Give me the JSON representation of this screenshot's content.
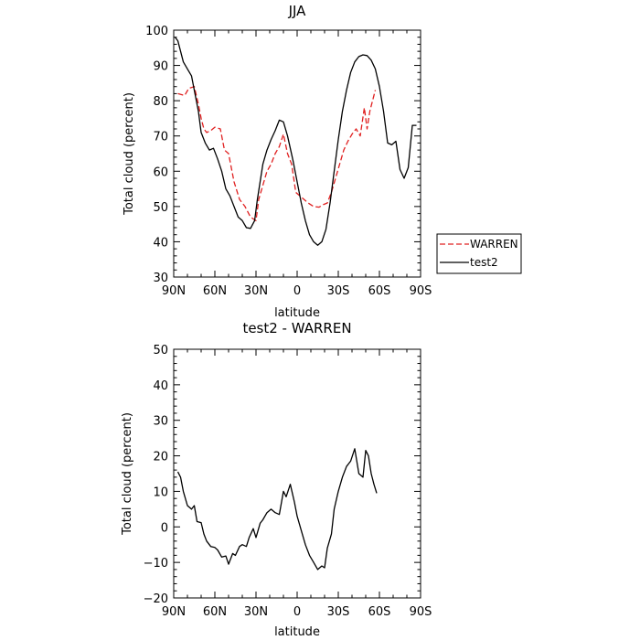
{
  "chart_data": [
    {
      "type": "line",
      "title": "JJA",
      "xlabel": "latitude",
      "ylabel": "Total cloud (percent)",
      "xlim": [
        90,
        -90
      ],
      "ylim": [
        30,
        100
      ],
      "x_ticks": [
        90,
        60,
        30,
        0,
        -30,
        -60,
        -90
      ],
      "x_tick_labels": [
        "90N",
        "60N",
        "30N",
        "0",
        "30S",
        "60S",
        "90S"
      ],
      "y_ticks": [
        30,
        40,
        50,
        60,
        70,
        80,
        90,
        100
      ],
      "y_tick_labels": [
        "30",
        "40",
        "50",
        "60",
        "70",
        "80",
        "90",
        "100"
      ],
      "grid": false,
      "legend": {
        "placement": "right"
      },
      "series": [
        {
          "name": "WARREN",
          "color": "#e02020",
          "dash": "dashed",
          "x": [
            87,
            82,
            79,
            75,
            72,
            70,
            68,
            66,
            63,
            60,
            56,
            53,
            50,
            46,
            42,
            38,
            34,
            30,
            28,
            25,
            22,
            19,
            16,
            13,
            10,
            7,
            4,
            1,
            -2,
            -5,
            -8,
            -12,
            -16,
            -19,
            -22,
            -25,
            -28,
            -31,
            -34,
            -37,
            -40,
            -43,
            -46,
            -49,
            -51,
            -53,
            -55,
            -57
          ],
          "y": [
            82,
            81.5,
            83.5,
            84,
            79,
            75,
            72,
            71,
            71.5,
            72.5,
            72,
            66,
            65,
            57,
            52,
            50,
            47,
            46,
            52,
            56,
            60,
            62,
            65,
            67,
            70.5,
            65,
            62,
            54,
            53,
            52,
            51,
            50,
            49.8,
            50.5,
            51,
            54,
            58,
            62,
            66,
            68.5,
            70.5,
            72,
            70,
            78,
            72,
            77,
            80,
            83
          ]
        },
        {
          "name": "test2",
          "color": "#000000",
          "dash": "solid",
          "x": [
            89,
            87,
            85,
            83,
            80,
            77,
            75,
            72,
            70,
            67,
            64,
            61,
            58,
            55,
            52,
            49,
            46,
            43,
            40,
            37,
            34,
            31,
            29,
            27,
            25,
            22,
            19,
            16,
            13,
            10,
            7,
            5,
            3,
            0,
            -3,
            -6,
            -9,
            -12,
            -15,
            -18,
            -21,
            -24,
            -27,
            -30,
            -33,
            -36,
            -39,
            -42,
            -45,
            -48,
            -51,
            -54,
            -57,
            -60,
            -63,
            -66,
            -69,
            -72,
            -75,
            -78,
            -81,
            -84,
            -87
          ],
          "y": [
            98,
            97,
            94,
            91,
            89,
            87,
            83,
            77,
            71,
            68,
            66,
            66.5,
            63.5,
            60,
            55,
            53,
            50,
            47,
            46,
            44,
            43.8,
            46,
            52,
            57,
            62,
            66,
            69,
            71.5,
            74.5,
            74,
            70,
            66.5,
            63,
            57,
            51,
            46,
            42,
            40,
            39,
            40,
            43.5,
            51,
            60,
            69,
            77,
            83,
            88,
            91,
            92.5,
            93,
            92.8,
            91.5,
            89,
            84,
            77,
            68,
            67.5,
            68.5,
            60.5,
            58,
            61,
            73,
            73
          ]
        }
      ]
    },
    {
      "type": "line",
      "title": "test2 - WARREN",
      "xlabel": "latitude",
      "ylabel": "Total cloud (percent)",
      "xlim": [
        90,
        -90
      ],
      "ylim": [
        -20,
        50
      ],
      "x_ticks": [
        90,
        60,
        30,
        0,
        -30,
        -60,
        -90
      ],
      "x_tick_labels": [
        "90N",
        "60N",
        "30N",
        "0",
        "30S",
        "60S",
        "90S"
      ],
      "y_ticks": [
        -20,
        -10,
        0,
        10,
        20,
        30,
        40,
        50
      ],
      "y_tick_labels": [
        "−20",
        "−10",
        "0",
        "10",
        "20",
        "30",
        "40",
        "50"
      ],
      "grid": false,
      "series": [
        {
          "color": "#000000",
          "dash": "solid",
          "x": [
            87,
            85,
            83,
            80,
            77,
            75,
            73,
            70,
            68,
            66,
            63,
            60,
            58,
            55,
            52,
            50,
            47,
            45,
            42,
            40,
            37,
            35,
            32,
            30,
            27,
            25,
            22,
            19,
            16,
            13,
            10,
            8,
            5,
            2,
            0,
            -3,
            -6,
            -9,
            -12,
            -15,
            -18,
            -20,
            -22,
            -25,
            -27,
            -30,
            -33,
            -36,
            -39,
            -42,
            -45,
            -48,
            -50,
            -52,
            -54,
            -56,
            -58
          ],
          "y": [
            15.5,
            14,
            10,
            6,
            5,
            6,
            1.5,
            1.2,
            -2,
            -4,
            -5.5,
            -5.8,
            -6.5,
            -8.5,
            -8.2,
            -10.5,
            -7.5,
            -8,
            -5.5,
            -5,
            -5.5,
            -3,
            -0.5,
            -3,
            1,
            2,
            4,
            5,
            4,
            3.5,
            10,
            8.5,
            12,
            7,
            3,
            -1,
            -5,
            -8,
            -10,
            -12,
            -11,
            -11.5,
            -6,
            -2,
            5,
            10,
            14,
            17,
            18.5,
            22,
            15,
            14,
            21.5,
            20,
            15,
            12,
            9.5
          ]
        }
      ]
    }
  ]
}
